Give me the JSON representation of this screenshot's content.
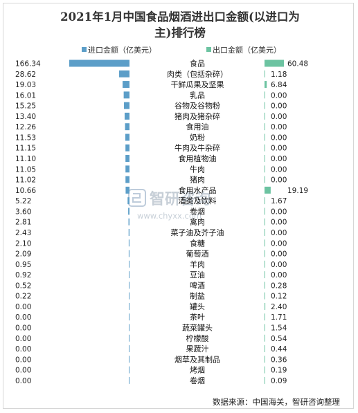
{
  "title": "2021年1月中国食品烟酒进出口金额(以进口为主)排行榜",
  "title_lines": [
    "2021年1月中国食品烟酒进出口金额(以进口为",
    "主)排行榜"
  ],
  "source": "数据来源：中国海关，智研咨询整理",
  "watermark": {
    "cn": "智研咨询",
    "url": "www.chyxx.com"
  },
  "colors": {
    "import": "#5c9ec8",
    "export": "#6cc3a1"
  },
  "chart_data": {
    "type": "bar",
    "orientation": "horizontal-diverging",
    "categories": [
      "食品",
      "肉类（包括杂碎）",
      "干鲜瓜果及坚果",
      "乳品",
      "谷物及谷物粉",
      "猪肉及猪杂碎",
      "食用油",
      "奶粉",
      "牛肉及牛杂碎",
      "食用植物油",
      "牛肉",
      "猪肉",
      "食用水产品",
      "酒类及饮料",
      "卷烟",
      "禽肉",
      "菜子油及芥子油",
      "食糖",
      "葡萄酒",
      "羊肉",
      "豆油",
      "啤酒",
      "制盐",
      "罐头",
      "茶叶",
      "蔬菜罐头",
      "柠檬酸",
      "果蔬汁",
      "烟草及其制品",
      "烤烟",
      "卷烟"
    ],
    "series": [
      {
        "name": "进口金额（亿美元）",
        "values": [
          166.34,
          28.62,
          19.03,
          16.01,
          15.25,
          13.4,
          12.26,
          11.53,
          11.15,
          11.1,
          11.05,
          11.02,
          10.66,
          5.22,
          3.6,
          2.81,
          2.43,
          2.1,
          2.09,
          0.95,
          0.92,
          0.52,
          0.22,
          0.0,
          0.0,
          0.0,
          0.0,
          0.0,
          0.0,
          0.0,
          0.0
        ]
      },
      {
        "name": "出口金额（亿美元）",
        "values": [
          60.48,
          1.18,
          6.84,
          0.0,
          0.0,
          0.0,
          0.0,
          0.0,
          0.0,
          0.0,
          0.0,
          0.0,
          19.19,
          1.67,
          0.0,
          0.0,
          0.0,
          0.0,
          0.0,
          0.0,
          0.0,
          0.28,
          0.12,
          2.4,
          1.71,
          1.54,
          0.54,
          0.44,
          0.36,
          0.19,
          0.09
        ]
      }
    ],
    "import_labels": [
      "166.34",
      "28.62",
      "19.03",
      "16.01",
      "15.25",
      "13.40",
      "12.26",
      "11.53",
      "11.15",
      "11.10",
      "11.05",
      "11.02",
      "10.66",
      "5.22",
      "3.60",
      "2.81",
      "2.43",
      "2.10",
      "2.09",
      "0.95",
      "0.92",
      "0.52",
      "0.22",
      "0.00",
      "0.00",
      "0.00",
      "0.00",
      "0.00",
      "0.00",
      "0.00",
      "0.00"
    ],
    "export_labels": [
      "60.48",
      "1.18",
      "6.84",
      "0.00",
      "0.00",
      "0.00",
      "0.00",
      "0.00",
      "0.00",
      "0.00",
      "0.00",
      "0.00",
      "19.19",
      "1.67",
      "0.00",
      "0.00",
      "0.00",
      "0.00",
      "0.00",
      "0.00",
      "0.00",
      "0.28",
      "0.12",
      "2.40",
      "1.71",
      "1.54",
      "0.54",
      "0.44",
      "0.36",
      "0.19",
      "0.09"
    ],
    "legend": "top"
  }
}
